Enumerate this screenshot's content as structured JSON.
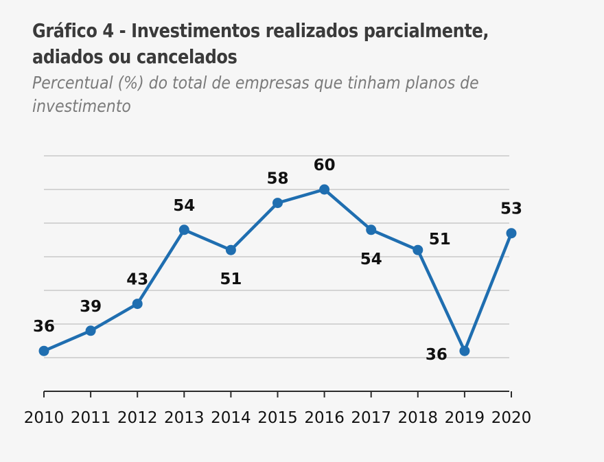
{
  "title": "Gráfico 4 - Investimentos realizados parcialmente, adiados ou cancelados",
  "title_line1": "Gráfico 4 - Investimentos realizados parcialmente,",
  "title_line2": "adiados ou cancelados",
  "subtitle_line1": "Percentual (%) do total de empresas que tinham planos de",
  "subtitle_line2": "investimento",
  "colors": {
    "line": "#1f6eb0",
    "grid": "#c9c9c9",
    "axis": "#2b2b2b",
    "background": "#f6f6f6"
  },
  "chart_data": {
    "type": "line",
    "title": "Gráfico 4 - Investimentos realizados parcialmente, adiados ou cancelados",
    "subtitle": "Percentual (%) do total de empresas que tinham planos de investimento",
    "xlabel": "",
    "ylabel": "",
    "categories": [
      "2010",
      "2011",
      "2012",
      "2013",
      "2014",
      "2015",
      "2016",
      "2017",
      "2018",
      "2019",
      "2020"
    ],
    "series": [
      {
        "name": "Investimentos realizados parcialmente, adiados ou cancelados",
        "values": [
          36,
          39,
          43,
          54,
          51,
          58,
          60,
          54,
          51,
          36,
          53
        ],
        "plotted_values": [
          36,
          39,
          43,
          54,
          51,
          58,
          60,
          54,
          51,
          36,
          53.5
        ]
      }
    ],
    "data_labels": [
      "36",
      "39",
      "43",
      "54",
      "51",
      "58",
      "60",
      "54",
      "51",
      "36",
      "53"
    ],
    "label_positions": [
      "above",
      "above",
      "above",
      "above",
      "below",
      "above",
      "above",
      "below",
      "right",
      "left",
      "above"
    ],
    "ylim": [
      34,
      66
    ],
    "gridlines": [
      35,
      40,
      45,
      50,
      55,
      60,
      65
    ],
    "grid": true,
    "legend": "none"
  }
}
